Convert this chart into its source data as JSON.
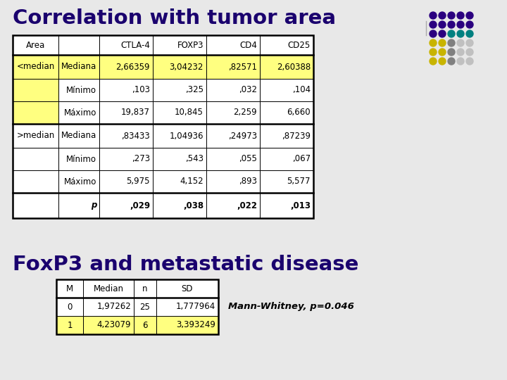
{
  "title1": "Correlation with tumor area",
  "title2": "FoxP3 and metastatic disease",
  "slide_bg": "#e8e8e8",
  "table1": {
    "col_headers": [
      "Area",
      "",
      "CTLA-4",
      "FOXP3",
      "CD4",
      "CD25"
    ],
    "rows": [
      [
        "<median",
        "Mediana",
        "2,66359",
        "3,04232",
        ",82571",
        "2,60388"
      ],
      [
        "",
        "Mínimo",
        ",103",
        ",325",
        ",032",
        ",104"
      ],
      [
        "",
        "Máximo",
        "19,837",
        "10,845",
        "2,259",
        "6,660"
      ],
      [
        ">median",
        "Mediana",
        ",83433",
        "1,04936",
        ",24973",
        ",87239"
      ],
      [
        "",
        "Mínimo",
        ",273",
        ",543",
        ",055",
        ",067"
      ],
      [
        "",
        "Máximo",
        "5,975",
        "4,152",
        ",893",
        "5,577"
      ],
      [
        "",
        "p",
        ",029",
        ",038",
        ",022",
        ",013"
      ]
    ]
  },
  "table2": {
    "col_headers": [
      "M",
      "Median",
      "n",
      "SD"
    ],
    "rows": [
      [
        "0",
        "1,97262",
        "25",
        "1,777964"
      ],
      [
        "1",
        "4,23079",
        "6",
        "3,393249"
      ]
    ]
  },
  "mann_whitney": "Mann-Whitney, p=0.046",
  "yellow": "#ffff80",
  "title_color": "#1a006e",
  "dot_grid": [
    [
      "#2b0080",
      "#2b0080",
      "#2b0080",
      "#2b0080",
      "#2b0080"
    ],
    [
      "#2b0080",
      "#2b0080",
      "#2b0080",
      "#2b0080",
      "#2b0080"
    ],
    [
      "#2b0080",
      "#2b0080",
      "#008080",
      "#008080",
      "#008080"
    ],
    [
      "#c8b400",
      "#c8b400",
      "#808080",
      "#c0c0c0",
      "#c0c0c0"
    ],
    [
      "#c8b400",
      "#c8b400",
      "#808080",
      "#c0c0c0",
      "#c0c0c0"
    ],
    [
      "#c8b400",
      "#c8b400",
      "#808080",
      "#c0c0c0",
      "#c0c0c0"
    ]
  ]
}
